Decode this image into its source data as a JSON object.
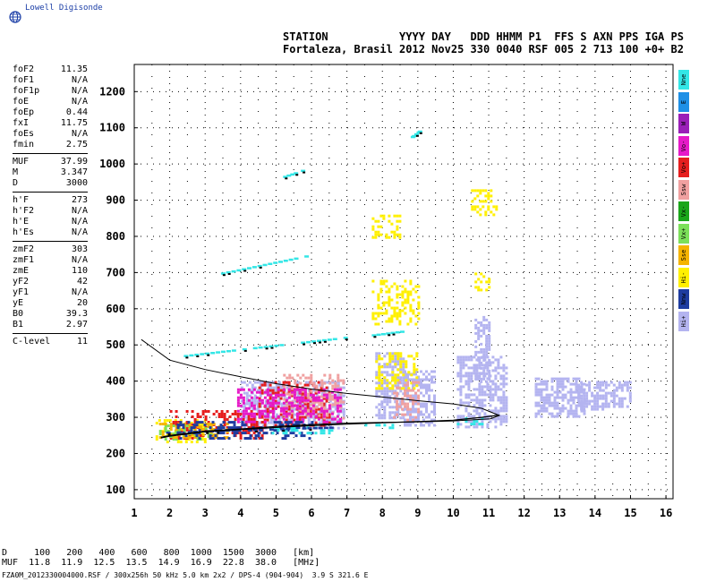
{
  "brand": {
    "name": "Lowell Digisonde",
    "icon": "globe-icon"
  },
  "header": {
    "line1": "STATION           YYYY DAY   DDD HHMM P1  FFS S AXN PPS IGA PS",
    "line2": "Fortaleza, Brasil 2012 Nov25 330 0040 RSF 005 2 713 100 +0+ B2"
  },
  "params_groups": [
    [
      {
        "k": "foF2",
        "v": "11.35"
      },
      {
        "k": "foF1",
        "v": "N/A"
      },
      {
        "k": "foF1p",
        "v": "N/A"
      },
      {
        "k": "foE",
        "v": "N/A"
      },
      {
        "k": "foEp",
        "v": "0.44"
      },
      {
        "k": "fxI",
        "v": "11.75"
      },
      {
        "k": "foEs",
        "v": "N/A"
      },
      {
        "k": "fmin",
        "v": "2.75"
      }
    ],
    [
      {
        "k": "MUF",
        "v": "37.99"
      },
      {
        "k": "M",
        "v": "3.347"
      },
      {
        "k": "D",
        "v": "3000"
      }
    ],
    [
      {
        "k": "h'F",
        "v": "273"
      },
      {
        "k": "h'F2",
        "v": "N/A"
      },
      {
        "k": "h'E",
        "v": "N/A"
      },
      {
        "k": "h'Es",
        "v": "N/A"
      }
    ],
    [
      {
        "k": "zmF2",
        "v": "303"
      },
      {
        "k": "zmF1",
        "v": "N/A"
      },
      {
        "k": "zmE",
        "v": "110"
      },
      {
        "k": "yF2",
        "v": "42"
      },
      {
        "k": "yF1",
        "v": "N/A"
      },
      {
        "k": "yE",
        "v": "20"
      },
      {
        "k": "B0",
        "v": "39.3"
      },
      {
        "k": "B1",
        "v": "2.97"
      }
    ],
    [
      {
        "k": "C-level",
        "v": "11"
      }
    ]
  ],
  "legend": [
    {
      "label": "Nne",
      "color": "#33e6e6"
    },
    {
      "label": "E",
      "color": "#1e90e6"
    },
    {
      "label": "W",
      "color": "#9a1fb8"
    },
    {
      "label": "Vo-",
      "color": "#e619c8"
    },
    {
      "label": "Vo+",
      "color": "#e61e1e"
    },
    {
      "label": "Ssw",
      "color": "#f0a0a0"
    },
    {
      "label": "Vx-",
      "color": "#1aa61a"
    },
    {
      "label": "Vx+",
      "color": "#7ce05a"
    },
    {
      "label": "Sse",
      "color": "#f5b400"
    },
    {
      "label": "Hi-",
      "color": "#fff000"
    },
    {
      "label": "Nnw",
      "color": "#1e3ca0"
    },
    {
      "label": "Hi+",
      "color": "#b4b4f0"
    }
  ],
  "muf_table": {
    "line1": "D     100   200   400   600   800  1000  1500  3000   [km]",
    "line2": "MUF  11.8  11.9  12.5  13.5  14.9  16.9  22.8  38.0   [MHz]"
  },
  "footer": "FZA0M_2012330004000.RSF / 300x256h 50 kHz 5.0 km 2x2 / DPS-4 (904-904)  3.9 S 321.6 E",
  "chart_data": {
    "type": "scatter",
    "title": "",
    "xlabel": "",
    "ylabel": "",
    "xlim": [
      1,
      16.2
    ],
    "ylim": [
      75,
      1275
    ],
    "xticks": [
      1,
      2,
      3,
      4,
      5,
      6,
      7,
      8,
      9,
      10,
      11,
      12,
      13,
      14,
      15,
      16
    ],
    "yticks": [
      100,
      200,
      300,
      400,
      500,
      600,
      700,
      800,
      900,
      1000,
      1100,
      1200
    ],
    "grid": true,
    "legend_position": "right",
    "profile_curve": [
      [
        1.2,
        515
      ],
      [
        2,
        458
      ],
      [
        3,
        432
      ],
      [
        4,
        412
      ],
      [
        5,
        393
      ],
      [
        6,
        378
      ],
      [
        7,
        366
      ],
      [
        8,
        356
      ],
      [
        9,
        346
      ],
      [
        10,
        337
      ],
      [
        10.8,
        325
      ],
      [
        11.3,
        305
      ],
      [
        11.05,
        296
      ],
      [
        10,
        290
      ],
      [
        9,
        287
      ],
      [
        8,
        286
      ],
      [
        7,
        284
      ],
      [
        6,
        280
      ],
      [
        5,
        275
      ],
      [
        4,
        268
      ],
      [
        3,
        262
      ],
      [
        2,
        250
      ],
      [
        1.75,
        245
      ]
    ],
    "trace_curve": [
      [
        1.75,
        243
      ],
      [
        2,
        248
      ],
      [
        3,
        260
      ],
      [
        4,
        266
      ],
      [
        5,
        272
      ],
      [
        6,
        277
      ],
      [
        7,
        281
      ],
      [
        8,
        285
      ],
      [
        9,
        288
      ],
      [
        10,
        292
      ],
      [
        10.8,
        300
      ],
      [
        11.3,
        306
      ]
    ],
    "echo_blocks": [
      {
        "mode": "Hi+",
        "color": "#b4b4f0",
        "x": [
          12.3,
          13.7
        ],
        "y": [
          300,
          410
        ]
      },
      {
        "mode": "Hi+",
        "color": "#b4b4f0",
        "x": [
          13.5,
          14.2
        ],
        "y": [
          320,
          400
        ]
      },
      {
        "mode": "Hi+",
        "color": "#b4b4f0",
        "x": [
          14.2,
          15.0
        ],
        "y": [
          330,
          400
        ]
      },
      {
        "mode": "Hi+",
        "color": "#b4b4f0",
        "x": [
          10.1,
          11.5
        ],
        "y": [
          270,
          470
        ]
      },
      {
        "mode": "Hi+",
        "color": "#b4b4f0",
        "x": [
          7.8,
          8.6
        ],
        "y": [
          300,
          480
        ]
      },
      {
        "mode": "Hi+",
        "color": "#b4b4f0",
        "x": [
          8.6,
          9.5
        ],
        "y": [
          280,
          430
        ]
      },
      {
        "mode": "Hi+",
        "color": "#b4b4f0",
        "x": [
          4.0,
          6.9
        ],
        "y": [
          270,
          400
        ]
      },
      {
        "mode": "Hi+",
        "color": "#b4b4f0",
        "x": [
          10.6,
          11.0
        ],
        "y": [
          400,
          580
        ]
      },
      {
        "mode": "Hi-",
        "color": "#fff000",
        "x": [
          7.8,
          9.0
        ],
        "y": [
          380,
          480
        ]
      },
      {
        "mode": "Hi-",
        "color": "#fff000",
        "x": [
          7.7,
          9.0
        ],
        "y": [
          560,
          680
        ]
      },
      {
        "mode": "Hi-",
        "color": "#fff000",
        "x": [
          7.7,
          8.5
        ],
        "y": [
          800,
          860
        ]
      },
      {
        "mode": "Hi-",
        "color": "#fff000",
        "x": [
          10.5,
          11.2
        ],
        "y": [
          860,
          930
        ]
      },
      {
        "mode": "Hi-",
        "color": "#fff000",
        "x": [
          10.6,
          11.0
        ],
        "y": [
          650,
          700
        ]
      },
      {
        "mode": "Hi-",
        "color": "#fff000",
        "x": [
          1.6,
          3.0
        ],
        "y": [
          235,
          295
        ]
      },
      {
        "mode": "Vo+",
        "color": "#e61e1e",
        "x": [
          2.0,
          4.6
        ],
        "y": [
          240,
          320
        ]
      },
      {
        "mode": "Vo+",
        "color": "#e61e1e",
        "x": [
          4.5,
          6.5
        ],
        "y": [
          280,
          400
        ]
      },
      {
        "mode": "Ssw",
        "color": "#f0a0a0",
        "x": [
          5.2,
          6.9
        ],
        "y": [
          300,
          420
        ]
      },
      {
        "mode": "Ssw",
        "color": "#f0a0a0",
        "x": [
          8.3,
          9.0
        ],
        "y": [
          290,
          400
        ]
      },
      {
        "mode": "Vo-",
        "color": "#e619c8",
        "x": [
          3.9,
          6.8
        ],
        "y": [
          290,
          380
        ]
      },
      {
        "mode": "Vx+",
        "color": "#7ce05a",
        "x": [
          1.7,
          3.2
        ],
        "y": [
          240,
          280
        ]
      },
      {
        "mode": "Sse",
        "color": "#f5b400",
        "x": [
          1.7,
          3.6
        ],
        "y": [
          245,
          285
        ]
      },
      {
        "mode": "Nnw",
        "color": "#1e3ca0",
        "x": [
          2.2,
          6.0
        ],
        "y": [
          245,
          290
        ]
      },
      {
        "mode": "Nne",
        "color": "#33e6e6",
        "x": [
          4.8,
          6.6
        ],
        "y": [
          260,
          275
        ]
      },
      {
        "mode": "Nne",
        "color": "#33e6e6",
        "x": [
          7.5,
          8.4
        ],
        "y": [
          272,
          282
        ]
      },
      {
        "mode": "Nne",
        "color": "#33e6e6",
        "x": [
          10.1,
          10.9
        ],
        "y": [
          285,
          300
        ]
      }
    ],
    "echo_segments": [
      {
        "mode": "Nne",
        "color": "#33e6e6",
        "x": [
          2.4,
          6.9
        ],
        "y": [
          470,
          520
        ]
      },
      {
        "mode": "Nne",
        "color": "#33e6e6",
        "x": [
          3.3,
          5.8
        ],
        "y": [
          695,
          745
        ]
      },
      {
        "mode": "Nne",
        "color": "#33e6e6",
        "x": [
          5.2,
          5.8
        ],
        "y": [
          965,
          985
        ]
      },
      {
        "mode": "Nne",
        "color": "#33e6e6",
        "x": [
          8.8,
          9.0
        ],
        "y": [
          1075,
          1090
        ]
      },
      {
        "mode": "Nne",
        "color": "#33e6e6",
        "x": [
          7.7,
          8.5
        ],
        "y": [
          527,
          537
        ]
      },
      {
        "mode": "Nnw",
        "color": "#1e3ca0",
        "x": [
          1.9,
          6.5
        ],
        "y": [
          258,
          272
        ]
      }
    ]
  }
}
